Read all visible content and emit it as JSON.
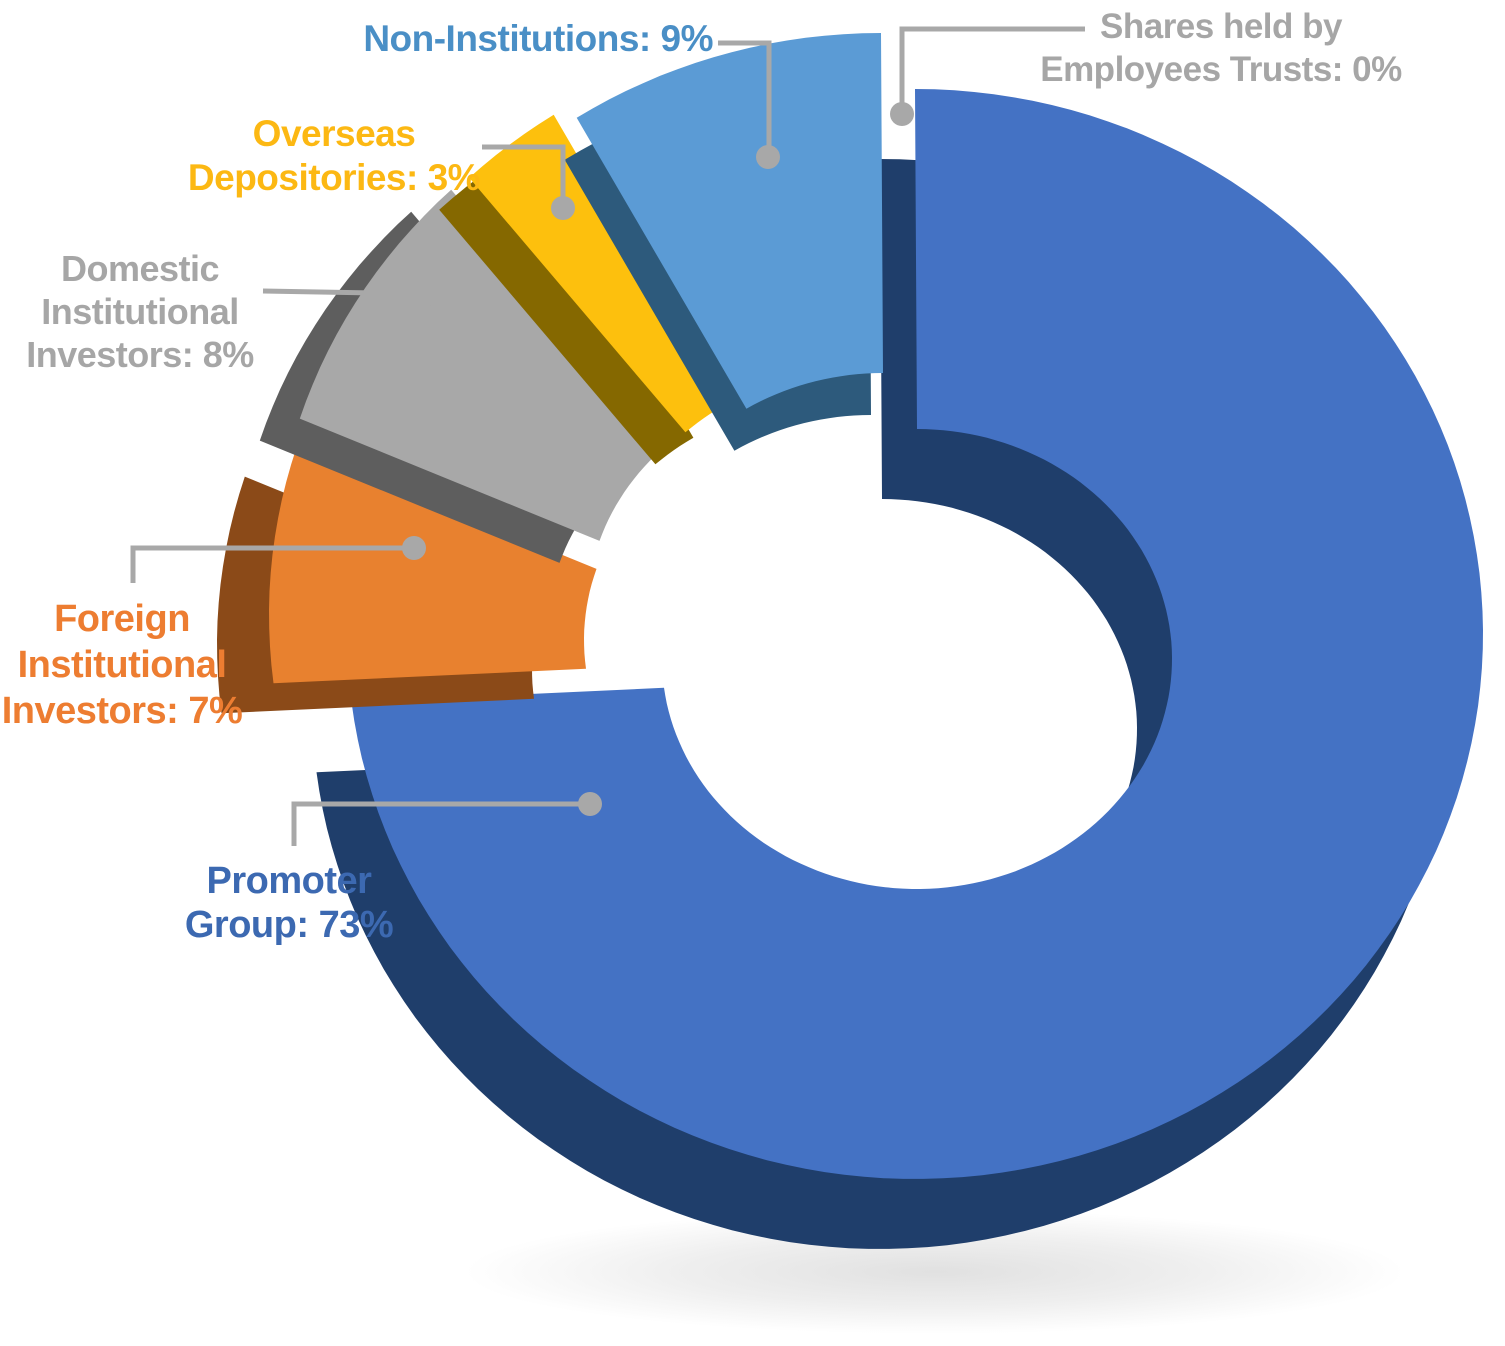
{
  "chart_data": {
    "type": "pie",
    "variant": "3d-exploded-donut",
    "unit": "%",
    "title": "",
    "background": "#ffffff",
    "legend_position": "callout-labels",
    "leader_color": "#a8a8a8",
    "slices": [
      {
        "id": "promoter",
        "label": "Promoter Group",
        "value": 73,
        "color": "#4472c4",
        "side_color": "#1f3e6b"
      },
      {
        "id": "foreign",
        "label": "Foreign Institutional Investors",
        "value": 7,
        "color": "#e8812f",
        "side_color": "#8b4a18"
      },
      {
        "id": "domestic",
        "label": "Domestic Institutional Investors",
        "value": 8,
        "color": "#a8a8a8",
        "side_color": "#5e5e5e"
      },
      {
        "id": "overseas",
        "label": "Overseas Depositories",
        "value": 3,
        "color": "#fdc00d",
        "side_color": "#856800"
      },
      {
        "id": "non_inst",
        "label": "Non-Institutions",
        "value": 9,
        "color": "#5b9bd5",
        "side_color": "#2d5a7c"
      },
      {
        "id": "employees",
        "label": "Shares held by Employees Trusts",
        "value": 0,
        "color": "#4472c4",
        "side_color": "#1f3e6b"
      }
    ],
    "callouts": [
      {
        "id": "promoter",
        "lines": [
          "Promoter",
          "Group: 73%"
        ],
        "color": "#3c69b1"
      },
      {
        "id": "foreign",
        "lines": [
          "Foreign",
          "Institutional",
          "Investors: 7%"
        ],
        "color": "#ed7d31"
      },
      {
        "id": "domestic",
        "lines": [
          "Domestic",
          "Institutional",
          "Investors: 8%"
        ],
        "color": "#a6a6a6"
      },
      {
        "id": "overseas",
        "lines": [
          "Overseas",
          "Depositories: 3%"
        ],
        "color": "#fcb813"
      },
      {
        "id": "non_inst",
        "lines": [
          "Non-Institutions: 9%"
        ],
        "color": "#4a8fc6"
      },
      {
        "id": "employees",
        "lines": [
          "Shares held by",
          "Employees Trusts: 0%"
        ],
        "color": "#a6a6a6"
      }
    ]
  }
}
